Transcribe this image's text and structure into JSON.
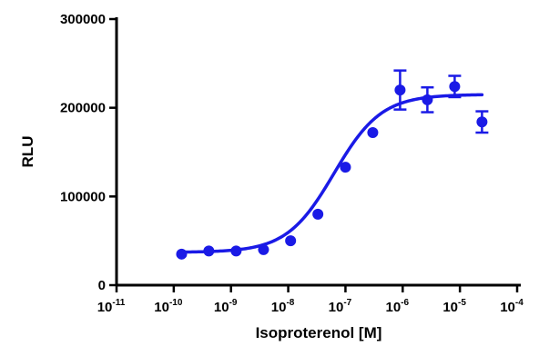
{
  "chart_data": {
    "type": "scatter",
    "title": "",
    "xlabel": "Isoproterenol [M]",
    "ylabel": "RLU",
    "x_scale": "log",
    "xlim": [
      1e-11,
      0.0001
    ],
    "ylim": [
      0,
      300000
    ],
    "x_tick_exponents": [
      "-11",
      "-10",
      "-9",
      "-8",
      "-7",
      "-6",
      "-5",
      "-4"
    ],
    "x_tick_base": "10",
    "y_ticks": [
      {
        "value": 0,
        "label": "0"
      },
      {
        "value": 100000,
        "label": "100000"
      },
      {
        "value": 200000,
        "label": "200000"
      },
      {
        "value": 300000,
        "label": "300000"
      }
    ],
    "grid": false,
    "legend": "none",
    "color": "#1a1ae6",
    "series": [
      {
        "points": [
          {
            "x": 1.37e-10,
            "y": 35000,
            "err": 0
          },
          {
            "x": 4.1e-10,
            "y": 38500,
            "err": 0
          },
          {
            "x": 1.23e-09,
            "y": 38500,
            "err": 0
          },
          {
            "x": 3.7e-09,
            "y": 40000,
            "err": 0
          },
          {
            "x": 1.1e-08,
            "y": 50000,
            "err": 0
          },
          {
            "x": 3.3e-08,
            "y": 80000,
            "err": 0
          },
          {
            "x": 1e-07,
            "y": 133000,
            "err": 0
          },
          {
            "x": 3e-07,
            "y": 172000,
            "err": 0
          },
          {
            "x": 9e-07,
            "y": 220000,
            "err": 22000
          },
          {
            "x": 2.7e-06,
            "y": 209000,
            "err": 14000
          },
          {
            "x": 8.1e-06,
            "y": 224000,
            "err": 12000
          },
          {
            "x": 2.43e-05,
            "y": 184000,
            "err": 12000
          }
        ]
      }
    ],
    "fit": {
      "model": "sigmoidal dose-response",
      "bottom": 37000,
      "top": 215000,
      "log_ec50": -7.2,
      "hill": 1.05,
      "x_range": [
        1.37e-10,
        2.43e-05
      ]
    }
  }
}
